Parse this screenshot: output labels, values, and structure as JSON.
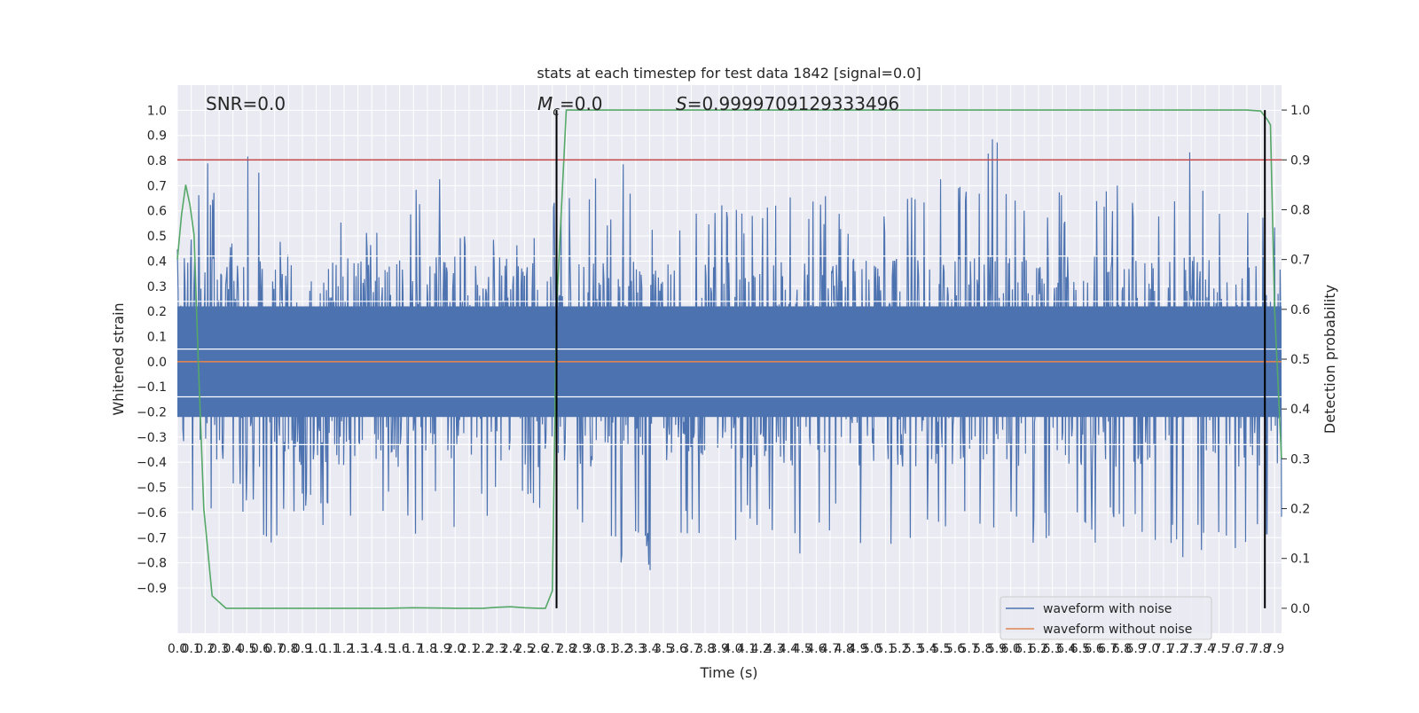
{
  "chart_data": {
    "type": "line",
    "title": "stats at each timestep for test data 1842 [signal=0.0]",
    "xlabel": "Time (s)",
    "ylabel": "Whitened strain",
    "y2label": "Detection probability",
    "xlim": [
      0.0,
      7.95
    ],
    "ylim": [
      -1.08,
      1.1
    ],
    "y2lim": [
      -0.05,
      1.05
    ],
    "x_ticks": [
      0.0,
      0.1,
      0.2,
      0.3,
      0.4,
      0.5,
      0.6,
      0.7,
      0.8,
      0.9,
      1.0,
      1.1,
      1.2,
      1.3,
      1.4,
      1.5,
      1.6,
      1.7,
      1.8,
      1.9,
      2.0,
      2.1,
      2.2,
      2.3,
      2.4,
      2.5,
      2.6,
      2.7,
      2.8,
      2.9,
      3.0,
      3.1,
      3.2,
      3.3,
      3.4,
      3.5,
      3.6,
      3.7,
      3.8,
      3.9,
      4.0,
      4.1,
      4.2,
      4.3,
      4.4,
      4.5,
      4.6,
      4.7,
      4.8,
      4.9,
      5.0,
      5.1,
      5.2,
      5.3,
      5.4,
      5.5,
      5.6,
      5.7,
      5.8,
      5.9,
      6.0,
      6.1,
      6.2,
      6.3,
      6.4,
      6.5,
      6.6,
      6.7,
      6.8,
      6.9,
      7.0,
      7.1,
      7.2,
      7.3,
      7.4,
      7.5,
      7.6,
      7.7,
      7.8,
      7.9
    ],
    "y_ticks": [
      -0.9,
      -0.8,
      -0.7,
      -0.6,
      -0.5,
      -0.4,
      -0.3,
      -0.2,
      -0.1,
      0.0,
      0.1,
      0.2,
      0.3,
      0.4,
      0.5,
      0.6,
      0.7,
      0.8,
      0.9,
      1.0
    ],
    "y2_ticks": [
      0.0,
      0.1,
      0.2,
      0.3,
      0.4,
      0.5,
      0.6,
      0.7,
      0.8,
      0.9,
      1.0
    ],
    "grid": true,
    "legend_position": "lower-right",
    "annotations": {
      "snr": "SNR=0.0",
      "mc_symbol": "M",
      "mc_subscript": "c",
      "mc_value": "=0.0",
      "s_symbol": "S",
      "s_value": "=0.9999709129333496"
    },
    "series": [
      {
        "name": "waveform with noise",
        "color": "#4c72b0",
        "axis": "left",
        "envelope": {
          "x": [
            0.0,
            0.1,
            0.2,
            0.3,
            0.4,
            0.5,
            0.6,
            0.7,
            0.8,
            0.9,
            1.0,
            1.1,
            1.2,
            1.3,
            1.4,
            1.5,
            1.6,
            1.7,
            1.8,
            1.9,
            2.0,
            2.1,
            2.2,
            2.3,
            2.4,
            2.5,
            2.6,
            2.7,
            2.8,
            2.9,
            3.0,
            3.1,
            3.2,
            3.3,
            3.4,
            3.5,
            3.6,
            3.7,
            3.8,
            3.9,
            4.0,
            4.1,
            4.2,
            4.3,
            4.4,
            4.5,
            4.6,
            4.7,
            4.8,
            4.9,
            5.0,
            5.1,
            5.2,
            5.3,
            5.4,
            5.5,
            5.6,
            5.7,
            5.8,
            5.9,
            6.0,
            6.1,
            6.2,
            6.3,
            6.4,
            6.5,
            6.6,
            6.7,
            6.8,
            6.9,
            7.0,
            7.1,
            7.2,
            7.3,
            7.4,
            7.5,
            7.6,
            7.7,
            7.8,
            7.9
          ],
          "upper": [
            0.52,
            0.5,
            0.89,
            0.57,
            0.55,
            0.83,
            0.82,
            0.5,
            0.45,
            0.5,
            0.6,
            0.62,
            0.6,
            0.62,
            0.5,
            0.55,
            0.58,
            0.72,
            0.55,
            0.85,
            0.6,
            0.55,
            0.62,
            0.5,
            0.5,
            0.45,
            0.6,
            0.68,
            0.7,
            0.72,
            0.75,
            0.6,
            0.89,
            0.7,
            0.6,
            0.6,
            0.63,
            0.68,
            0.65,
            0.7,
            0.6,
            0.62,
            0.6,
            0.66,
            0.7,
            0.62,
            0.65,
            0.7,
            0.6,
            0.55,
            0.55,
            0.6,
            0.62,
            0.7,
            0.65,
            0.81,
            0.72,
            0.7,
            0.77,
            0.99,
            0.68,
            0.75,
            0.7,
            0.72,
            0.65,
            0.67,
            0.7,
            0.7,
            0.72,
            0.68,
            0.7,
            0.68,
            0.8,
            0.84,
            0.72,
            0.7,
            0.7,
            0.7,
            0.6,
            0.65
          ],
          "lower": [
            -0.55,
            -0.6,
            -0.65,
            -0.77,
            -0.55,
            -0.62,
            -0.75,
            -0.73,
            -0.65,
            -0.6,
            -0.65,
            -0.7,
            -0.72,
            -0.65,
            -0.6,
            -0.62,
            -0.6,
            -0.82,
            -0.6,
            -0.65,
            -0.72,
            -0.6,
            -0.65,
            -0.6,
            -0.6,
            -0.62,
            -0.58,
            -0.65,
            -0.78,
            -0.72,
            -0.75,
            -0.7,
            -0.86,
            -0.7,
            -0.84,
            -0.7,
            -0.72,
            -0.75,
            -0.72,
            -0.77,
            -0.72,
            -0.68,
            -0.72,
            -0.7,
            -0.76,
            -0.89,
            -0.72,
            -0.7,
            -0.7,
            -0.72,
            -0.74,
            -0.76,
            -0.72,
            -0.74,
            -0.76,
            -0.72,
            -0.75,
            -0.7,
            -0.74,
            -0.76,
            -0.72,
            -0.74,
            -0.77,
            -0.72,
            -0.7,
            -0.74,
            -0.76,
            -0.72,
            -0.7,
            -0.74,
            -0.72,
            -0.7,
            -0.74,
            -0.85,
            -0.72,
            -0.7,
            -0.75,
            -0.72,
            -0.74,
            -0.7
          ]
        }
      },
      {
        "name": "waveform without noise",
        "color": "#dd8452",
        "axis": "left",
        "x": [
          0.0,
          7.95
        ],
        "y": [
          0.0,
          0.0
        ]
      },
      {
        "name": "",
        "color": "#55a868",
        "axis": "right",
        "x": [
          0.0,
          0.03,
          0.06,
          0.09,
          0.12,
          0.15,
          0.19,
          0.25,
          0.35,
          0.5,
          1.0,
          1.5,
          1.7,
          2.0,
          2.2,
          2.3,
          2.4,
          2.5,
          2.6,
          2.65,
          2.7,
          2.73,
          2.8,
          2.9,
          3.0,
          4.0,
          5.0,
          6.0,
          7.0,
          7.7,
          7.8,
          7.85,
          7.87,
          7.9,
          7.95
        ],
        "y": [
          0.7,
          0.79,
          0.85,
          0.81,
          0.75,
          0.5,
          0.2,
          0.025,
          0.0,
          0.0,
          0.0,
          0.0,
          0.001,
          0.0,
          0.0,
          0.002,
          0.003,
          0.001,
          0.0,
          0.0,
          0.035,
          0.6,
          1.0,
          1.0,
          1.0,
          1.0,
          1.0,
          1.0,
          1.0,
          1.0,
          0.998,
          0.98,
          0.97,
          0.6,
          0.3
        ]
      },
      {
        "name": "",
        "color": "#c44e52",
        "axis": "right",
        "x": [
          0.0,
          7.95
        ],
        "y": [
          0.9,
          0.9
        ]
      }
    ],
    "vertical_markers": {
      "color": "#000000",
      "x": [
        2.73,
        7.83
      ],
      "y2_range": [
        0.0,
        1.0
      ]
    }
  }
}
